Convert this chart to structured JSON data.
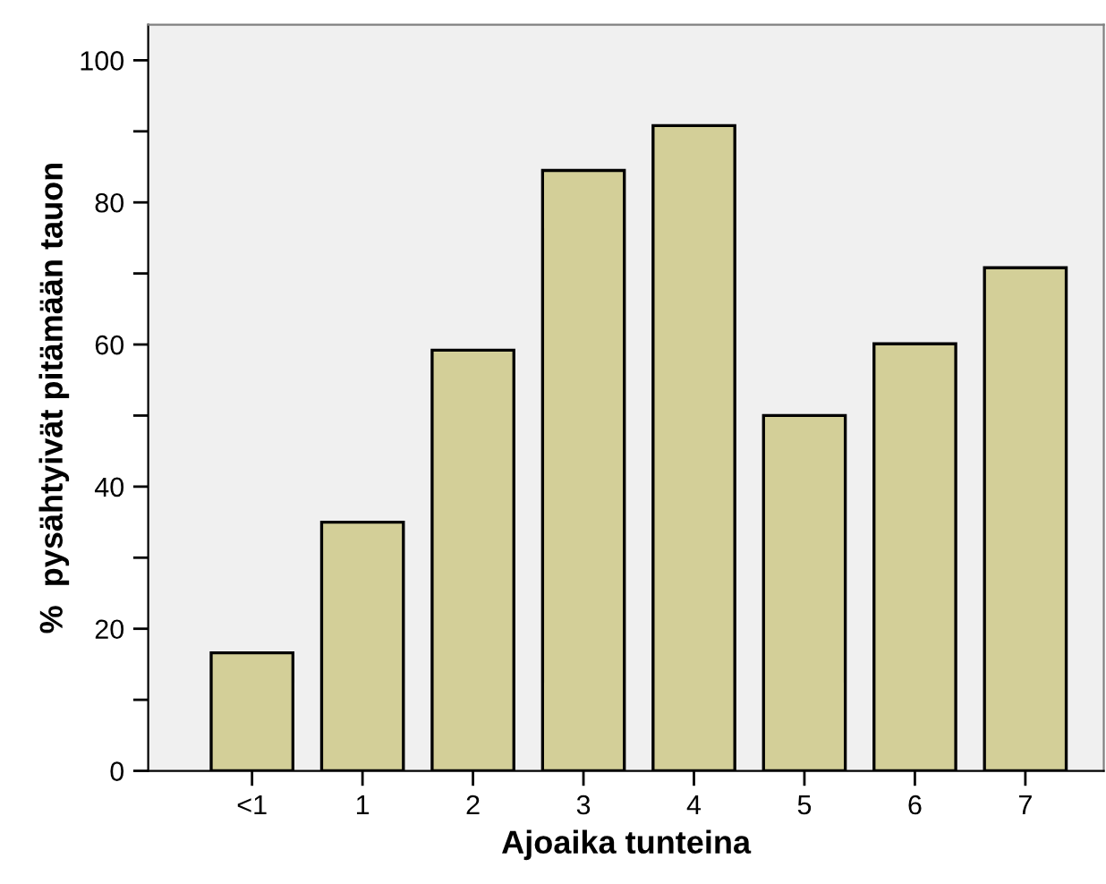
{
  "chart_data": {
    "type": "bar",
    "xlabel": "Ajoaika tunteina",
    "ylabel": "%  pysähtyivät pitämään tauon",
    "categories": [
      "<1",
      "1",
      "2",
      "3",
      "4",
      "5",
      "6",
      "7"
    ],
    "values": [
      16.6,
      35.0,
      59.2,
      84.5,
      90.8,
      50.0,
      60.1,
      70.8
    ],
    "color": "#d3cf98",
    "ylim": [
      0,
      105
    ],
    "yticks": [
      0,
      {
        "value": 10,
        "label": null
      },
      20,
      {
        "value": 30,
        "label": null
      },
      40,
      {
        "value": 50,
        "label": null
      },
      60,
      {
        "value": 70,
        "label": null
      },
      80,
      {
        "value": 90,
        "label": null
      },
      100
    ],
    "grid": false,
    "legend": false
  }
}
